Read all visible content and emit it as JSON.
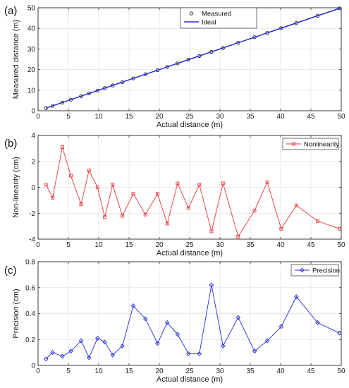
{
  "chart_data": [
    {
      "type": "line",
      "panel": "(a)",
      "xlabel": "Actual distance (m)",
      "ylabel": "Measured distance (m)",
      "xlim": [
        0,
        50
      ],
      "ylim": [
        0,
        50
      ],
      "xticks": [
        0,
        5,
        10,
        15,
        20,
        25,
        30,
        35,
        40,
        45,
        50
      ],
      "yticks": [
        0,
        10,
        20,
        30,
        40,
        50
      ],
      "grid": true,
      "legend": "top-center",
      "series": [
        {
          "name": "Measured",
          "marker": "circle",
          "line": false,
          "color": "#222222",
          "x": [
            1.3,
            2.4,
            4.0,
            5.4,
            7.1,
            8.4,
            9.8,
            11.0,
            12.3,
            13.9,
            15.7,
            17.7,
            19.7,
            21.3,
            23.0,
            24.8,
            26.6,
            28.6,
            30.5,
            33.0,
            35.7,
            37.8,
            40.1,
            42.6,
            46.1,
            49.7
          ],
          "y": [
            1.3,
            2.4,
            4.0,
            5.4,
            7.1,
            8.4,
            9.8,
            11.0,
            12.3,
            13.9,
            15.7,
            17.7,
            19.7,
            21.3,
            23.0,
            24.8,
            26.6,
            28.6,
            30.5,
            33.0,
            35.7,
            37.8,
            40.1,
            42.6,
            46.1,
            49.7
          ]
        },
        {
          "name": "Ideal",
          "marker": "none",
          "line": true,
          "color": "#1f2bd6",
          "x": [
            1.3,
            50
          ],
          "y": [
            1.3,
            50
          ]
        }
      ]
    },
    {
      "type": "line",
      "panel": "(b)",
      "xlabel": "Actual distance (m)",
      "ylabel": "Non-linearity (cm)",
      "xlim": [
        0,
        50
      ],
      "ylim": [
        -4,
        4
      ],
      "xticks": [
        0,
        5,
        10,
        15,
        20,
        25,
        30,
        35,
        40,
        45,
        50
      ],
      "yticks": [
        -4,
        -2,
        0,
        2,
        4
      ],
      "grid": true,
      "legend": "top-right",
      "series": [
        {
          "name": "Nonlinearity",
          "marker": "square",
          "line": true,
          "color": "#e8363a",
          "x": [
            1.3,
            2.4,
            4.0,
            5.4,
            7.1,
            8.4,
            9.8,
            11.0,
            12.3,
            13.9,
            15.7,
            17.7,
            19.7,
            21.3,
            23.0,
            24.8,
            26.6,
            28.6,
            30.5,
            33.0,
            35.7,
            37.8,
            40.1,
            42.6,
            46.1,
            49.7
          ],
          "y": [
            0.2,
            -0.8,
            3.1,
            0.9,
            -1.3,
            1.3,
            0.0,
            -2.3,
            0.2,
            -2.2,
            -0.5,
            -2.1,
            -0.5,
            -2.8,
            0.3,
            -1.6,
            0.2,
            -3.4,
            0.3,
            -3.8,
            -1.8,
            0.4,
            -3.2,
            -1.4,
            -2.6,
            -3.2
          ]
        }
      ]
    },
    {
      "type": "line",
      "panel": "(c)",
      "xlabel": "Actual distance (m)",
      "ylabel": "Precision (cm)",
      "xlim": [
        0,
        50
      ],
      "ylim": [
        0,
        0.8
      ],
      "xticks": [
        0,
        5,
        10,
        15,
        20,
        25,
        30,
        35,
        40,
        45,
        50
      ],
      "yticks": [
        0,
        0.2,
        0.4,
        0.6,
        0.8
      ],
      "grid": true,
      "legend": "top-right",
      "series": [
        {
          "name": "Precision",
          "marker": "diamond",
          "line": true,
          "color": "#1f2bd6",
          "x": [
            1.3,
            2.4,
            4.0,
            5.4,
            7.1,
            8.4,
            9.8,
            11.0,
            12.3,
            13.9,
            15.7,
            17.7,
            19.7,
            21.3,
            23.0,
            24.8,
            26.6,
            28.6,
            30.5,
            33.0,
            35.7,
            37.8,
            40.1,
            42.6,
            46.1,
            49.7
          ],
          "y": [
            0.05,
            0.1,
            0.07,
            0.11,
            0.19,
            0.06,
            0.21,
            0.18,
            0.08,
            0.15,
            0.46,
            0.36,
            0.17,
            0.33,
            0.24,
            0.09,
            0.09,
            0.62,
            0.15,
            0.37,
            0.11,
            0.19,
            0.3,
            0.53,
            0.33,
            0.25
          ]
        }
      ]
    }
  ]
}
